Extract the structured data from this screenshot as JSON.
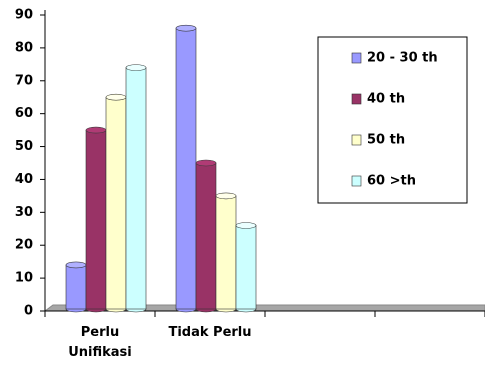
{
  "chart_data": {
    "type": "bar",
    "categories": [
      "Perlu Unifikasi",
      "Tidak Perlu",
      null,
      null
    ],
    "series": [
      {
        "name": "20 - 30 th",
        "color": "#9999ff",
        "values": [
          14,
          86,
          null,
          null
        ]
      },
      {
        "name": "40 th",
        "color": "#993366",
        "values": [
          55,
          45,
          null,
          null
        ]
      },
      {
        "name": "50 th",
        "color": "#ffffcc",
        "values": [
          65,
          35,
          null,
          null
        ]
      },
      {
        "name": "60 >th",
        "color": "#ccffff",
        "values": [
          74,
          26,
          null,
          null
        ]
      }
    ],
    "ylim": [
      0,
      90
    ],
    "yticks": [
      0,
      10,
      20,
      30,
      40,
      50,
      60,
      70,
      80,
      90
    ],
    "grid": false,
    "legend": "right"
  }
}
